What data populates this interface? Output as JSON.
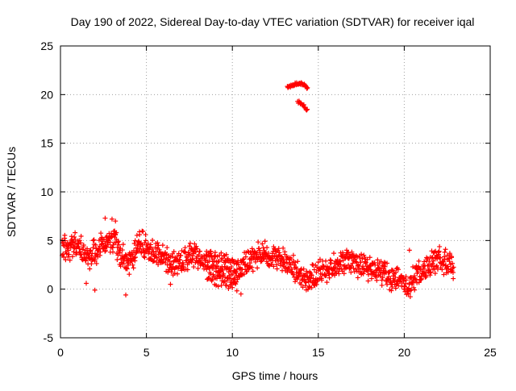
{
  "chart_data": {
    "type": "scatter",
    "title": "Day 190 of 2022, Sidereal Day-to-day VTEC variation (SDTVAR) for receiver iqal",
    "xlabel": "GPS time / hours",
    "ylabel": "SDTVAR / TECUs",
    "xlim": [
      0,
      25
    ],
    "ylim": [
      -5,
      25
    ],
    "xticks": [
      0,
      5,
      10,
      15,
      20,
      25
    ],
    "yticks": [
      -5,
      0,
      5,
      10,
      15,
      20,
      25
    ],
    "grid": true,
    "marker": "plus",
    "series": [
      {
        "name": "SDTVAR",
        "color": "#ff0000",
        "trend": [
          [
            0.1,
            4.8
          ],
          [
            0.3,
            4.2
          ],
          [
            0.5,
            4.0
          ],
          [
            0.8,
            4.5
          ],
          [
            1.0,
            4.6
          ],
          [
            1.3,
            3.8
          ],
          [
            1.6,
            3.2
          ],
          [
            1.9,
            3.6
          ],
          [
            2.2,
            4.2
          ],
          [
            2.5,
            4.6
          ],
          [
            2.8,
            5.2
          ],
          [
            3.1,
            5.0
          ],
          [
            3.4,
            4.0
          ],
          [
            3.7,
            3.2
          ],
          [
            4.0,
            2.8
          ],
          [
            4.3,
            3.5
          ],
          [
            4.6,
            4.8
          ],
          [
            4.9,
            4.5
          ],
          [
            5.2,
            3.8
          ],
          [
            5.5,
            3.5
          ],
          [
            5.8,
            3.3
          ],
          [
            6.1,
            3.0
          ],
          [
            6.4,
            2.7
          ],
          [
            6.7,
            2.8
          ],
          [
            7.0,
            3.0
          ],
          [
            7.3,
            3.3
          ],
          [
            7.6,
            3.6
          ],
          [
            7.9,
            3.5
          ],
          [
            8.2,
            3.3
          ],
          [
            8.5,
            3.1
          ],
          [
            8.8,
            2.9
          ],
          [
            9.1,
            2.6
          ],
          [
            9.4,
            2.4
          ],
          [
            9.7,
            2.2
          ],
          [
            10.0,
            2.1
          ],
          [
            10.3,
            2.0
          ],
          [
            10.6,
            2.3
          ],
          [
            10.9,
            2.6
          ],
          [
            11.2,
            3.2
          ],
          [
            11.5,
            3.6
          ],
          [
            11.8,
            3.8
          ],
          [
            12.1,
            3.7
          ],
          [
            12.4,
            3.5
          ],
          [
            12.7,
            3.3
          ],
          [
            13.0,
            3.0
          ],
          [
            13.3,
            2.6
          ],
          [
            13.6,
            2.0
          ],
          [
            13.9,
            1.4
          ],
          [
            14.2,
            1.1
          ],
          [
            14.5,
            1.3
          ],
          [
            14.8,
            1.6
          ],
          [
            15.1,
            1.8
          ],
          [
            15.4,
            2.0
          ],
          [
            15.7,
            2.2
          ],
          [
            16.0,
            2.5
          ],
          [
            16.3,
            2.8
          ],
          [
            16.6,
            3.0
          ],
          [
            16.9,
            2.7
          ],
          [
            17.2,
            2.6
          ],
          [
            17.5,
            2.4
          ],
          [
            17.8,
            2.3
          ],
          [
            18.1,
            2.1
          ],
          [
            18.4,
            2.0
          ],
          [
            18.7,
            1.7
          ],
          [
            19.0,
            1.3
          ],
          [
            19.3,
            1.1
          ],
          [
            19.6,
            0.8
          ],
          [
            19.9,
            0.5
          ],
          [
            20.2,
            0.0
          ],
          [
            20.5,
            0.9
          ],
          [
            20.8,
            1.5
          ],
          [
            21.1,
            1.9
          ],
          [
            21.4,
            2.3
          ],
          [
            21.7,
            2.9
          ],
          [
            22.0,
            3.2
          ],
          [
            22.3,
            2.9
          ],
          [
            22.6,
            2.7
          ],
          [
            22.9,
            2.4
          ]
        ],
        "lower_band": [
          [
            8.5,
            1.6
          ],
          [
            8.8,
            1.2
          ],
          [
            9.1,
            0.9
          ],
          [
            9.4,
            0.7
          ],
          [
            9.7,
            0.6
          ],
          [
            10.0,
            0.5
          ],
          [
            10.3,
            0.4
          ]
        ],
        "upper_arc": [
          [
            13.2,
            20.7
          ],
          [
            13.5,
            21.0
          ],
          [
            13.8,
            21.2
          ],
          [
            14.1,
            21.1
          ],
          [
            14.4,
            20.6
          ]
        ],
        "lower_arc": [
          [
            13.8,
            19.3
          ],
          [
            14.0,
            19.1
          ],
          [
            14.2,
            18.8
          ],
          [
            14.4,
            18.3
          ]
        ],
        "outliers": [
          [
            2.0,
            -0.1
          ],
          [
            3.8,
            -0.6
          ],
          [
            1.5,
            0.6
          ],
          [
            10.5,
            -0.5
          ],
          [
            20.3,
            4.0
          ],
          [
            6.4,
            0.5
          ],
          [
            3.0,
            7.2
          ],
          [
            3.2,
            7.0
          ],
          [
            2.6,
            7.3
          ],
          [
            4.6,
            5.9
          ]
        ]
      }
    ]
  }
}
